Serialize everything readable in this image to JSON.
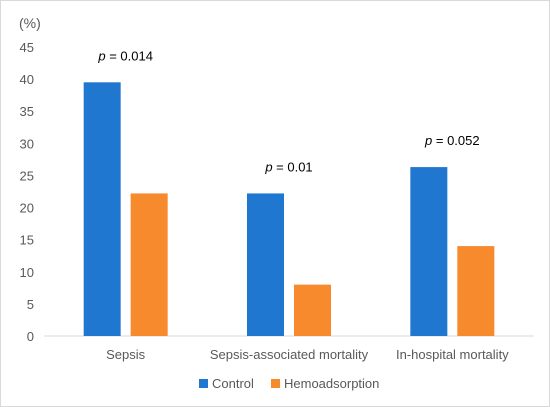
{
  "chart_data": {
    "type": "bar",
    "ylabel": "(%)",
    "ylim": [
      0,
      45
    ],
    "yticks": [
      0,
      5,
      10,
      15,
      20,
      25,
      30,
      35,
      40,
      45
    ],
    "categories": [
      "Sepsis",
      "Sepsis-associated mortality",
      "In-hospital mortality"
    ],
    "series": [
      {
        "name": "Control",
        "color": "#1F77D0",
        "values": [
          39.5,
          22.2,
          26.3
        ]
      },
      {
        "name": "Hemoadsorption",
        "color": "#F68A2D",
        "values": [
          22.2,
          8.0,
          14.0
        ]
      }
    ],
    "annotations": [
      {
        "category_index": 0,
        "prefix": "p",
        "text": " = 0.014"
      },
      {
        "category_index": 1,
        "prefix": "p",
        "text": " = 0.01"
      },
      {
        "category_index": 2,
        "prefix": "p",
        "text": " = 0.052"
      }
    ],
    "grid": false,
    "legend": "bottom"
  }
}
